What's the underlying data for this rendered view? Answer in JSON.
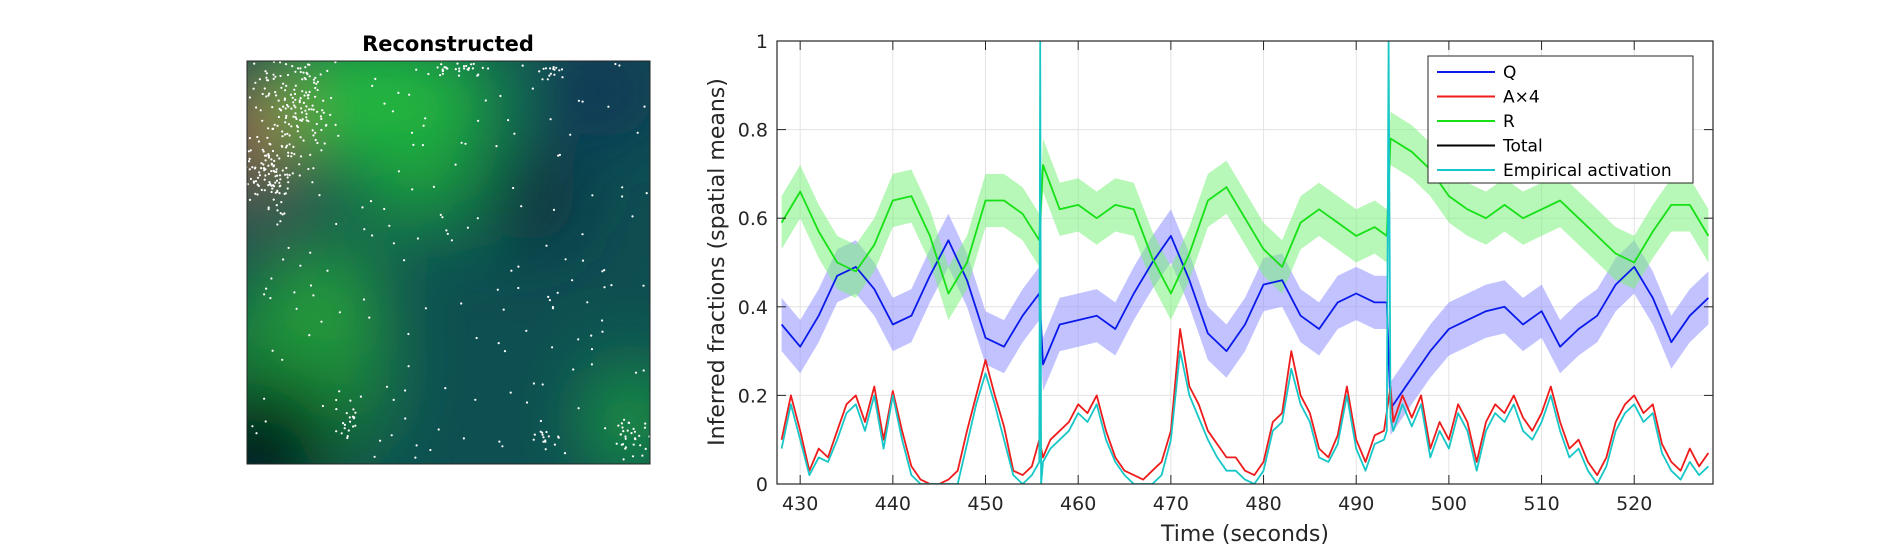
{
  "chart_data": [
    {
      "type": "heatmap",
      "title": "Reconstructed",
      "description_channels": {
        "red": "A",
        "green": "R",
        "blue": "Q"
      },
      "overlay": "white dots (spike locations)",
      "colors": {
        "background": "#0e4a4a",
        "green_region": "#1fae3d",
        "dark_region": "#041722",
        "red_region": "#9a6a4c",
        "dots": "#ffffff"
      }
    },
    {
      "type": "line",
      "title": "",
      "xlabel": "Time (seconds)",
      "ylabel": "Inferred fractions (spatial means)",
      "xlim": [
        427.5,
        528.5
      ],
      "ylim": [
        0,
        1
      ],
      "xticks": [
        430,
        440,
        450,
        460,
        470,
        480,
        490,
        500,
        510,
        520
      ],
      "yticks": [
        0,
        0.2,
        0.4,
        0.6,
        0.8,
        1
      ],
      "ytick_labels": [
        "0",
        "0.2",
        "0.4",
        "0.6",
        "0.8",
        "1"
      ],
      "grid": true,
      "legend_position": "top-right",
      "series": [
        {
          "name": "Q",
          "color": "#0a1aeb",
          "band_color": "#8f8fff",
          "x": [
            428,
            430,
            432,
            434,
            436,
            438,
            440,
            442,
            444,
            446,
            448,
            450,
            452,
            454,
            455.8,
            456.2,
            458,
            460,
            462,
            464,
            466,
            468,
            470,
            472,
            474,
            476,
            478,
            480,
            482,
            484,
            486,
            488,
            490,
            492,
            493.3,
            493.7,
            496,
            498,
            500,
            502,
            504,
            506,
            508,
            510,
            512,
            514,
            516,
            518,
            520,
            522,
            524,
            526,
            528
          ],
          "values": [
            0.36,
            0.31,
            0.38,
            0.47,
            0.49,
            0.44,
            0.36,
            0.38,
            0.47,
            0.55,
            0.46,
            0.33,
            0.31,
            0.38,
            0.43,
            0.27,
            0.36,
            0.37,
            0.38,
            0.35,
            0.43,
            0.5,
            0.56,
            0.46,
            0.34,
            0.3,
            0.36,
            0.45,
            0.46,
            0.38,
            0.35,
            0.41,
            0.43,
            0.41,
            0.41,
            0.17,
            0.24,
            0.3,
            0.35,
            0.37,
            0.39,
            0.4,
            0.36,
            0.39,
            0.31,
            0.35,
            0.38,
            0.45,
            0.49,
            0.42,
            0.32,
            0.38,
            0.42
          ],
          "band_halfwidth": 0.06
        },
        {
          "name": "A×4",
          "color": "#ee1c1c",
          "x": [
            428,
            429,
            430,
            431,
            432,
            433,
            434,
            435,
            436,
            437,
            438,
            439,
            440,
            441,
            442,
            443,
            444,
            445,
            446,
            447,
            448,
            449,
            450,
            451,
            452,
            453,
            454,
            455,
            455.8,
            456.2,
            457,
            458,
            459,
            460,
            461,
            462,
            463,
            464,
            465,
            466,
            467,
            468,
            469,
            470,
            471,
            472,
            473,
            474,
            475,
            476,
            477,
            478,
            479,
            480,
            481,
            482,
            483,
            484,
            485,
            486,
            487,
            488,
            489,
            490,
            491,
            492,
            493,
            493.7,
            494,
            495,
            496,
            497,
            498,
            499,
            500,
            501,
            502,
            503,
            504,
            505,
            506,
            507,
            508,
            509,
            510,
            511,
            512,
            513,
            514,
            515,
            516,
            517,
            518,
            519,
            520,
            521,
            522,
            523,
            524,
            525,
            526,
            527,
            528
          ],
          "values": [
            0.1,
            0.2,
            0.12,
            0.03,
            0.08,
            0.06,
            0.12,
            0.18,
            0.2,
            0.14,
            0.22,
            0.1,
            0.21,
            0.12,
            0.04,
            0.01,
            0.0,
            0.0,
            0.01,
            0.03,
            0.12,
            0.2,
            0.28,
            0.2,
            0.13,
            0.03,
            0.02,
            0.04,
            0.1,
            0.06,
            0.1,
            0.12,
            0.14,
            0.18,
            0.16,
            0.2,
            0.12,
            0.06,
            0.03,
            0.02,
            0.01,
            0.03,
            0.05,
            0.12,
            0.35,
            0.22,
            0.18,
            0.12,
            0.09,
            0.06,
            0.06,
            0.03,
            0.02,
            0.05,
            0.14,
            0.16,
            0.3,
            0.2,
            0.16,
            0.08,
            0.06,
            0.11,
            0.22,
            0.1,
            0.05,
            0.11,
            0.12,
            0.22,
            0.14,
            0.2,
            0.15,
            0.2,
            0.08,
            0.14,
            0.1,
            0.18,
            0.14,
            0.05,
            0.14,
            0.18,
            0.16,
            0.2,
            0.15,
            0.12,
            0.16,
            0.22,
            0.14,
            0.08,
            0.1,
            0.05,
            0.02,
            0.06,
            0.14,
            0.18,
            0.2,
            0.16,
            0.18,
            0.09,
            0.05,
            0.03,
            0.08,
            0.04,
            0.07
          ]
        },
        {
          "name": "R",
          "color": "#16e016",
          "band_color": "#7cf07c",
          "x": [
            428,
            430,
            432,
            434,
            436,
            438,
            440,
            442,
            444,
            446,
            448,
            450,
            452,
            454,
            455.8,
            456.2,
            458,
            460,
            462,
            464,
            466,
            468,
            470,
            472,
            474,
            476,
            478,
            480,
            482,
            484,
            486,
            488,
            490,
            492,
            493.3,
            493.7,
            496,
            498,
            500,
            502,
            504,
            506,
            508,
            510,
            512,
            514,
            516,
            518,
            520,
            522,
            524,
            526,
            528
          ],
          "values": [
            0.59,
            0.66,
            0.57,
            0.5,
            0.48,
            0.54,
            0.64,
            0.65,
            0.56,
            0.43,
            0.5,
            0.64,
            0.64,
            0.61,
            0.55,
            0.72,
            0.62,
            0.63,
            0.6,
            0.63,
            0.62,
            0.51,
            0.43,
            0.52,
            0.64,
            0.67,
            0.6,
            0.53,
            0.49,
            0.59,
            0.62,
            0.59,
            0.56,
            0.58,
            0.56,
            0.78,
            0.75,
            0.71,
            0.65,
            0.62,
            0.6,
            0.63,
            0.6,
            0.62,
            0.64,
            0.6,
            0.56,
            0.52,
            0.5,
            0.57,
            0.63,
            0.63,
            0.56
          ],
          "band_halfwidth": 0.06
        },
        {
          "name": "Total",
          "color": "#000000",
          "x": [],
          "values": []
        },
        {
          "name": "Empirical activation",
          "color": "#17c7c7",
          "x": [
            428,
            429,
            430,
            431,
            432,
            433,
            434,
            435,
            436,
            437,
            438,
            439,
            440,
            441,
            442,
            443,
            444,
            445,
            446,
            447,
            448,
            449,
            450,
            451,
            452,
            453,
            454,
            455,
            455.8,
            455.9,
            456,
            456.2,
            457,
            458,
            459,
            460,
            461,
            462,
            463,
            464,
            465,
            466,
            467,
            468,
            469,
            470,
            471,
            472,
            473,
            474,
            475,
            476,
            477,
            478,
            479,
            480,
            481,
            482,
            483,
            484,
            485,
            486,
            487,
            488,
            489,
            490,
            491,
            492,
            493,
            493.3,
            493.5,
            493.7,
            494,
            495,
            496,
            497,
            498,
            499,
            500,
            501,
            502,
            503,
            504,
            505,
            506,
            507,
            508,
            509,
            510,
            511,
            512,
            513,
            514,
            515,
            516,
            517,
            518,
            519,
            520,
            521,
            522,
            523,
            524,
            525,
            526,
            527,
            528
          ],
          "values": [
            0.08,
            0.18,
            0.1,
            0.02,
            0.06,
            0.05,
            0.1,
            0.16,
            0.18,
            0.12,
            0.2,
            0.08,
            0.2,
            0.1,
            0.02,
            0.0,
            0.0,
            0.0,
            0.0,
            0.0,
            0.09,
            0.18,
            0.25,
            0.18,
            0.1,
            0.02,
            0.0,
            0.02,
            0.05,
            1.0,
            0.0,
            0.05,
            0.08,
            0.1,
            0.12,
            0.16,
            0.14,
            0.18,
            0.1,
            0.05,
            0.02,
            0.0,
            0.0,
            0.0,
            0.02,
            0.1,
            0.3,
            0.2,
            0.15,
            0.1,
            0.06,
            0.03,
            0.03,
            0.01,
            0.0,
            0.03,
            0.12,
            0.14,
            0.26,
            0.18,
            0.14,
            0.06,
            0.05,
            0.09,
            0.2,
            0.08,
            0.03,
            0.09,
            0.1,
            0.12,
            1.0,
            0.15,
            0.12,
            0.18,
            0.13,
            0.18,
            0.06,
            0.12,
            0.08,
            0.16,
            0.12,
            0.03,
            0.12,
            0.16,
            0.14,
            0.18,
            0.12,
            0.1,
            0.14,
            0.2,
            0.12,
            0.06,
            0.08,
            0.03,
            0.0,
            0.04,
            0.12,
            0.16,
            0.18,
            0.14,
            0.16,
            0.07,
            0.03,
            0.01,
            0.05,
            0.02,
            0.04
          ]
        }
      ]
    }
  ]
}
